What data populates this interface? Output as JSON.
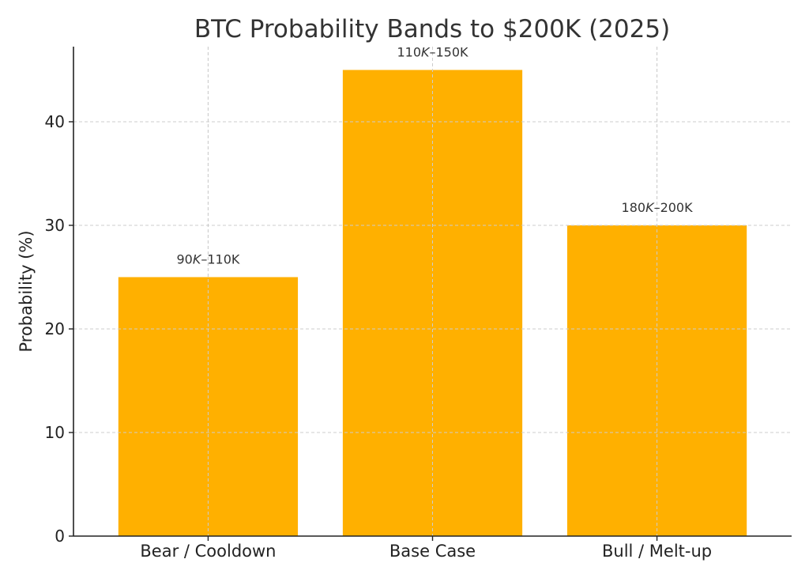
{
  "chart_data": {
    "type": "bar",
    "title": "BTC Probability Bands to $200K (2025)",
    "xlabel": "",
    "ylabel": "Probability (%)",
    "categories": [
      "Bear / Cooldown",
      "Base Case",
      "Bull / Melt-up"
    ],
    "values": [
      25,
      45,
      30
    ],
    "data_labels": [
      {
        "pre": "90",
        "italic": "K",
        "post": "–110K"
      },
      {
        "pre": "110",
        "italic": "K",
        "post": "–150K"
      },
      {
        "pre": "180",
        "italic": "K",
        "post": "–200K"
      }
    ],
    "ylim": [
      0,
      47.25
    ],
    "yticks": [
      0,
      10,
      20,
      30,
      40
    ],
    "grid": true,
    "bar_color": "#FFB000"
  }
}
